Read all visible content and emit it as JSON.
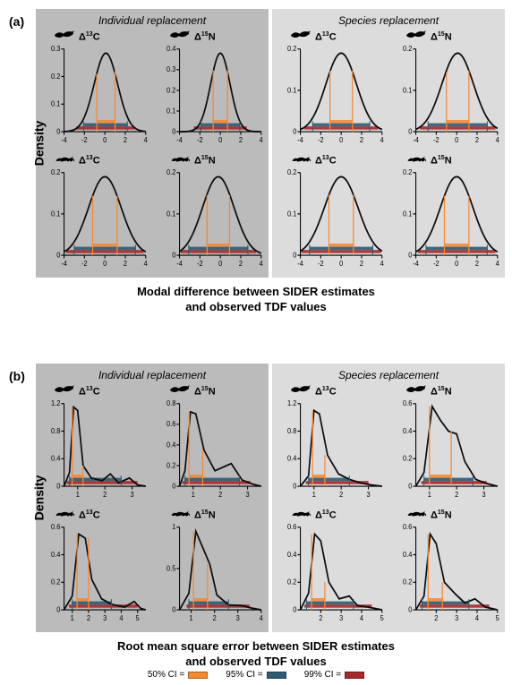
{
  "colors": {
    "ci50": "#f58a34",
    "ci95": "#2e5b71",
    "ci99": "#a62a2a",
    "curve": "#0c0c0c",
    "axis": "#000000",
    "bg_left": "#bbbbbb",
    "bg_right": "#dcdcdc"
  },
  "panel_a_label": "(a)",
  "panel_b_label": "(b)",
  "density_label": "Density",
  "caption_a_line1": "Modal difference between SIDER estimates",
  "caption_a_line2": "and observed TDF values",
  "caption_b_line1": "Root mean square error between SIDER estimates",
  "caption_b_line2": "and observed TDF values",
  "replacement_labels": {
    "individual": "Individual replacement",
    "species": "Species replacement"
  },
  "legend": {
    "ci50": "50% CI =",
    "ci95": "95% CI =",
    "ci99": "99% CI ="
  },
  "isotopes": {
    "c": "Δ<sup>13</sup>C",
    "n": "Δ<sup>15</sup>N"
  },
  "icons": {
    "bird": "bird",
    "mammal": "mammal"
  },
  "panel_a": {
    "xrange": [
      -4,
      4
    ],
    "xticks": [
      -4,
      -2,
      0,
      2,
      4
    ],
    "charts": [
      {
        "half": "left",
        "row": 0,
        "col": 0,
        "icon": "bird",
        "isotope": "c",
        "ymax": 0.3,
        "yticks": [
          0,
          0.1,
          0.2,
          0.3
        ],
        "mode": 0.1,
        "sd": 1.15,
        "ci50": [
          -0.8,
          1.0
        ],
        "ci95": [
          -2.1,
          2.2
        ],
        "ci99": [
          -2.8,
          2.9
        ]
      },
      {
        "half": "left",
        "row": 0,
        "col": 1,
        "icon": "bird",
        "isotope": "n",
        "ymax": 0.4,
        "yticks": [
          0,
          0.1,
          0.2,
          0.3,
          0.4
        ],
        "mode": 0.0,
        "sd": 0.95,
        "ci50": [
          -0.7,
          0.7
        ],
        "ci95": [
          -1.9,
          1.9
        ],
        "ci99": [
          -2.6,
          2.6
        ]
      },
      {
        "half": "left",
        "row": 1,
        "col": 0,
        "icon": "mammal",
        "isotope": "c",
        "ymax": 0.2,
        "yticks": [
          0,
          0.1,
          0.2
        ],
        "mode": 0.0,
        "sd": 1.6,
        "ci50": [
          -1.2,
          1.2
        ],
        "ci95": [
          -3.0,
          3.0
        ],
        "ci99": [
          -3.8,
          3.8
        ]
      },
      {
        "half": "left",
        "row": 1,
        "col": 1,
        "icon": "mammal",
        "isotope": "n",
        "ymax": 0.2,
        "yticks": [
          0,
          0.1,
          0.2
        ],
        "mode": -0.2,
        "sd": 1.55,
        "ci50": [
          -1.3,
          0.9
        ],
        "ci95": [
          -3.1,
          2.7
        ],
        "ci99": [
          -3.9,
          3.5
        ]
      },
      {
        "half": "right",
        "row": 0,
        "col": 0,
        "icon": "bird",
        "isotope": "c",
        "ymax": 0.2,
        "yticks": [
          0,
          0.1,
          0.2
        ],
        "mode": 0.0,
        "sd": 1.5,
        "ci50": [
          -1.1,
          1.1
        ],
        "ci95": [
          -2.8,
          2.8
        ],
        "ci99": [
          -3.6,
          3.6
        ]
      },
      {
        "half": "right",
        "row": 0,
        "col": 1,
        "icon": "bird",
        "isotope": "n",
        "ymax": 0.2,
        "yticks": [
          0,
          0.1,
          0.2
        ],
        "mode": 0.1,
        "sd": 1.55,
        "ci50": [
          -1.0,
          1.2
        ],
        "ci95": [
          -2.8,
          3.0
        ],
        "ci99": [
          -3.6,
          3.8
        ]
      },
      {
        "half": "right",
        "row": 1,
        "col": 0,
        "icon": "mammal",
        "isotope": "c",
        "ymax": 0.2,
        "yticks": [
          0,
          0.1,
          0.2
        ],
        "mode": 0.0,
        "sd": 1.65,
        "ci50": [
          -1.2,
          1.2
        ],
        "ci95": [
          -3.1,
          3.1
        ],
        "ci99": [
          -3.9,
          3.9
        ]
      },
      {
        "half": "right",
        "row": 1,
        "col": 1,
        "icon": "mammal",
        "isotope": "n",
        "ymax": 0.2,
        "yticks": [
          0,
          0.1,
          0.2
        ],
        "mode": 0.0,
        "sd": 1.6,
        "ci50": [
          -1.2,
          1.2
        ],
        "ci95": [
          -3.0,
          3.0
        ],
        "ci99": [
          -3.8,
          3.8
        ]
      }
    ]
  },
  "panel_b": {
    "charts": [
      {
        "half": "left",
        "row": 0,
        "col": 0,
        "icon": "bird",
        "isotope": "c",
        "xrange": [
          0.5,
          3.5
        ],
        "xticks": [
          1,
          2,
          3
        ],
        "ymax": 1.2,
        "yticks": [
          0,
          0.4,
          0.8,
          1.2
        ],
        "peak_x": 0.9,
        "curve": [
          [
            0.5,
            0
          ],
          [
            0.7,
            0.2
          ],
          [
            0.85,
            1.15
          ],
          [
            1.0,
            1.1
          ],
          [
            1.2,
            0.3
          ],
          [
            1.5,
            0.12
          ],
          [
            1.9,
            0.08
          ],
          [
            2.2,
            0.18
          ],
          [
            2.5,
            0.05
          ],
          [
            2.9,
            0.12
          ],
          [
            3.2,
            0.02
          ],
          [
            3.5,
            0
          ]
        ],
        "ci50": [
          0.8,
          1.2
        ],
        "ci95": [
          0.7,
          2.6
        ],
        "ci99": [
          0.6,
          3.2
        ]
      },
      {
        "half": "left",
        "row": 0,
        "col": 1,
        "icon": "bird",
        "isotope": "n",
        "xrange": [
          0.5,
          3.5
        ],
        "xticks": [
          1,
          2,
          3
        ],
        "ymax": 0.8,
        "yticks": [
          0,
          0.2,
          0.4,
          0.6,
          0.8
        ],
        "peak_x": 1.0,
        "curve": [
          [
            0.5,
            0
          ],
          [
            0.7,
            0.15
          ],
          [
            0.9,
            0.72
          ],
          [
            1.1,
            0.7
          ],
          [
            1.4,
            0.35
          ],
          [
            1.8,
            0.15
          ],
          [
            2.4,
            0.22
          ],
          [
            2.8,
            0.06
          ],
          [
            3.2,
            0.02
          ],
          [
            3.5,
            0
          ]
        ],
        "ci50": [
          0.85,
          1.35
        ],
        "ci95": [
          0.7,
          2.7
        ],
        "ci99": [
          0.6,
          3.1
        ]
      },
      {
        "half": "left",
        "row": 1,
        "col": 0,
        "icon": "mammal",
        "isotope": "c",
        "xrange": [
          0.5,
          5.5
        ],
        "xticks": [
          1,
          2,
          3,
          4,
          5
        ],
        "ymax": 0.6,
        "yticks": [
          0,
          0.2,
          0.4,
          0.6
        ],
        "peak_x": 1.6,
        "curve": [
          [
            0.5,
            0
          ],
          [
            1.0,
            0.1
          ],
          [
            1.4,
            0.55
          ],
          [
            1.8,
            0.52
          ],
          [
            2.2,
            0.22
          ],
          [
            2.8,
            0.08
          ],
          [
            3.4,
            0.04
          ],
          [
            4.2,
            0.02
          ],
          [
            4.8,
            0.06
          ],
          [
            5.2,
            0.01
          ],
          [
            5.5,
            0
          ]
        ],
        "ci50": [
          1.3,
          2.0
        ],
        "ci95": [
          1.0,
          3.4
        ],
        "ci99": [
          0.8,
          5.0
        ]
      },
      {
        "half": "left",
        "row": 1,
        "col": 1,
        "icon": "mammal",
        "isotope": "n",
        "xrange": [
          0.5,
          4.0
        ],
        "xticks": [
          1,
          2,
          3,
          4
        ],
        "ymax": 1.0,
        "yticks": [
          0,
          0.5,
          1.0
        ],
        "peak_x": 1.3,
        "curve": [
          [
            0.5,
            0
          ],
          [
            0.9,
            0.2
          ],
          [
            1.2,
            0.95
          ],
          [
            1.5,
            0.75
          ],
          [
            1.8,
            0.55
          ],
          [
            2.1,
            0.18
          ],
          [
            2.6,
            0.06
          ],
          [
            3.2,
            0.05
          ],
          [
            3.6,
            0.02
          ],
          [
            4.0,
            0
          ]
        ],
        "ci50": [
          1.1,
          1.7
        ],
        "ci95": [
          0.9,
          2.6
        ],
        "ci99": [
          0.8,
          3.5
        ]
      },
      {
        "half": "right",
        "row": 0,
        "col": 0,
        "icon": "bird",
        "isotope": "c",
        "xrange": [
          0.5,
          3.5
        ],
        "xticks": [
          1,
          2,
          3
        ],
        "ymax": 1.2,
        "yticks": [
          0,
          0.4,
          0.8,
          1.2
        ],
        "peak_x": 1.1,
        "curve": [
          [
            0.5,
            0
          ],
          [
            0.8,
            0.15
          ],
          [
            1.0,
            1.1
          ],
          [
            1.2,
            1.05
          ],
          [
            1.5,
            0.45
          ],
          [
            1.9,
            0.18
          ],
          [
            2.3,
            0.1
          ],
          [
            2.7,
            0.05
          ],
          [
            3.1,
            0.02
          ],
          [
            3.5,
            0
          ]
        ],
        "ci50": [
          0.95,
          1.4
        ],
        "ci95": [
          0.8,
          2.3
        ],
        "ci99": [
          0.7,
          3.0
        ]
      },
      {
        "half": "right",
        "row": 0,
        "col": 1,
        "icon": "bird",
        "isotope": "n",
        "xrange": [
          0.5,
          3.5
        ],
        "xticks": [
          1,
          2,
          3
        ],
        "ymax": 0.6,
        "yticks": [
          0,
          0.2,
          0.4,
          0.6
        ],
        "peak_x": 1.2,
        "curve": [
          [
            0.5,
            0
          ],
          [
            0.8,
            0.1
          ],
          [
            1.1,
            0.58
          ],
          [
            1.4,
            0.48
          ],
          [
            1.7,
            0.4
          ],
          [
            2.0,
            0.38
          ],
          [
            2.3,
            0.18
          ],
          [
            2.7,
            0.05
          ],
          [
            3.1,
            0.02
          ],
          [
            3.5,
            0
          ]
        ],
        "ci50": [
          1.0,
          1.8
        ],
        "ci95": [
          0.8,
          2.6
        ],
        "ci99": [
          0.7,
          3.1
        ]
      },
      {
        "half": "right",
        "row": 1,
        "col": 0,
        "icon": "mammal",
        "isotope": "c",
        "xrange": [
          1.0,
          5.0
        ],
        "xticks": [
          2,
          3,
          4,
          5
        ],
        "ymax": 0.6,
        "yticks": [
          0,
          0.2,
          0.4,
          0.6
        ],
        "peak_x": 1.8,
        "curve": [
          [
            1.0,
            0
          ],
          [
            1.4,
            0.12
          ],
          [
            1.7,
            0.55
          ],
          [
            2.0,
            0.5
          ],
          [
            2.4,
            0.2
          ],
          [
            2.9,
            0.08
          ],
          [
            3.4,
            0.1
          ],
          [
            3.8,
            0.03
          ],
          [
            4.3,
            0.02
          ],
          [
            5.0,
            0
          ]
        ],
        "ci50": [
          1.55,
          2.2
        ],
        "ci95": [
          1.3,
          3.6
        ],
        "ci99": [
          1.2,
          4.5
        ]
      },
      {
        "half": "right",
        "row": 1,
        "col": 1,
        "icon": "mammal",
        "isotope": "n",
        "xrange": [
          1.0,
          5.0
        ],
        "xticks": [
          2,
          3,
          4,
          5
        ],
        "ymax": 0.6,
        "yticks": [
          0,
          0.2,
          0.4,
          0.6
        ],
        "peak_x": 1.9,
        "curve": [
          [
            1.0,
            0
          ],
          [
            1.4,
            0.1
          ],
          [
            1.7,
            0.55
          ],
          [
            2.0,
            0.48
          ],
          [
            2.4,
            0.2
          ],
          [
            2.9,
            0.12
          ],
          [
            3.4,
            0.05
          ],
          [
            3.9,
            0.08
          ],
          [
            4.4,
            0.02
          ],
          [
            5.0,
            0
          ]
        ],
        "ci50": [
          1.6,
          2.3
        ],
        "ci95": [
          1.3,
          3.6
        ],
        "ci99": [
          1.2,
          4.6
        ]
      }
    ]
  }
}
